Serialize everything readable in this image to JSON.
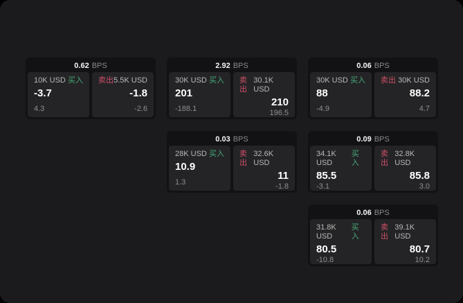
{
  "labels": {
    "unit": "BPS",
    "buy": "买入",
    "sell": "卖出"
  },
  "colors": {
    "buy": "#46aa78",
    "sell": "#cf4f68",
    "panel_bg": "#1b1b1d",
    "card_bg": "#121214",
    "tile_bg": "#242426"
  },
  "cards": [
    {
      "bps": "0.62",
      "buy": {
        "size": "10K USD",
        "price": "-3.7",
        "change": "4.3"
      },
      "sell": {
        "size": "5.5K USD",
        "price": "-1.8",
        "change": "-2.6"
      }
    },
    {
      "bps": "2.92",
      "buy": {
        "size": "30K USD",
        "price": "201",
        "change": "-188.1"
      },
      "sell": {
        "size": "30.1K USD",
        "price": "210",
        "change": "196.5"
      }
    },
    {
      "bps": "0.06",
      "buy": {
        "size": "30K USD",
        "price": "88",
        "change": "-4.9"
      },
      "sell": {
        "size": "30K USD",
        "price": "88.2",
        "change": "4.7"
      }
    },
    {
      "bps": "0.03",
      "buy": {
        "size": "28K USD",
        "price": "10.9",
        "change": "1.3"
      },
      "sell": {
        "size": "32.6K USD",
        "price": "11",
        "change": "-1.8"
      }
    },
    {
      "bps": "0.09",
      "buy": {
        "size": "34.1K USD",
        "price": "85.5",
        "change": "-3.1"
      },
      "sell": {
        "size": "32.8K USD",
        "price": "85.8",
        "change": "3.0"
      }
    },
    {
      "bps": "0.06",
      "buy": {
        "size": "31.8K USD",
        "price": "80.5",
        "change": "-10.8"
      },
      "sell": {
        "size": "39.1K USD",
        "price": "80.7",
        "change": "10.2"
      }
    }
  ]
}
